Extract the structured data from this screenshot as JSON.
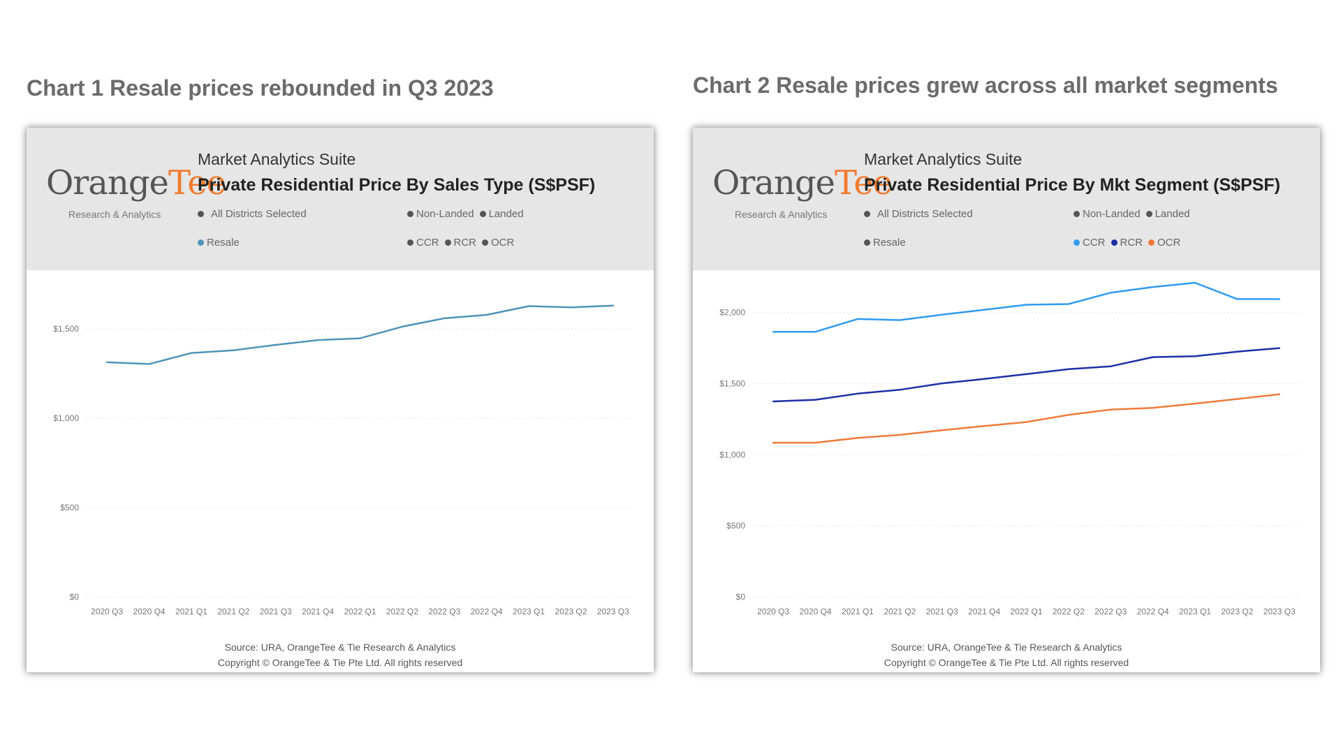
{
  "headings": {
    "chart1": "Chart 1 Resale prices rebounded in Q3 2023",
    "chart2": "Chart 2 Resale prices grew across all market segments"
  },
  "brand": {
    "logo_left": "Orange",
    "logo_right": "Tee",
    "logo_sub": "Research & Analytics",
    "suite": "Market Analytics Suite",
    "logo_color": "#f07a2d"
  },
  "panels": [
    {
      "title": "Private Residential Price By Sales Type (S$PSF)",
      "filters": {
        "districts": "All Districts Selected",
        "non_landed": "Non-Landed",
        "landed": "Landed",
        "resale": "Resale",
        "ccr": "CCR",
        "rcr": "RCR",
        "ocr": "OCR"
      },
      "filter_colors": {
        "resale": "#4f93b8",
        "ccr": "#555555",
        "rcr": "#555555",
        "ocr": "#555555"
      },
      "source": "Source: URA, OrangeTee & Tie Research & Analytics",
      "copyright": "Copyright © OrangeTee & Tie Pte Ltd. All rights reserved"
    },
    {
      "title": "Private Residential Price By Mkt Segment (S$PSF)",
      "filters": {
        "districts": "All Districts Selected",
        "non_landed": "Non-Landed",
        "landed": "Landed",
        "resale": "Resale",
        "ccr": "CCR",
        "rcr": "RCR",
        "ocr": "OCR"
      },
      "filter_colors": {
        "resale": "#555555",
        "ccr": "#2f9bf0",
        "rcr": "#1c2fa8",
        "ocr": "#f07a3a"
      },
      "source": "Source: URA, OrangeTee & Tie Research & Analytics",
      "copyright": "Copyright © OrangeTee & Tie Pte Ltd. All rights reserved"
    }
  ],
  "chart_data": [
    {
      "type": "line",
      "title": "Private Residential Price By Sales Type (S$PSF)",
      "categories": [
        "2020 Q3",
        "2020 Q4",
        "2021 Q1",
        "2021 Q2",
        "2021 Q3",
        "2021 Q4",
        "2022 Q1",
        "2022 Q2",
        "2022 Q3",
        "2022 Q4",
        "2023 Q1",
        "2023 Q2",
        "2023 Q3"
      ],
      "series": [
        {
          "name": "Resale",
          "color": "#4f93b8",
          "values": [
            1313,
            1303,
            1365,
            1380,
            1410,
            1437,
            1447,
            1512,
            1559,
            1578,
            1627,
            1620,
            1630
          ]
        }
      ],
      "yticks": [
        0,
        500,
        1000,
        1500
      ],
      "ytick_labels": [
        "$0",
        "$500",
        "$1,000",
        "$1,500"
      ],
      "ylim": [
        0,
        1750
      ],
      "grid": true,
      "legend": "top"
    },
    {
      "type": "line",
      "title": "Private Residential Price By Mkt Segment (S$PSF)",
      "categories": [
        "2020 Q3",
        "2020 Q4",
        "2021 Q1",
        "2021 Q2",
        "2021 Q3",
        "2021 Q4",
        "2022 Q1",
        "2022 Q2",
        "2022 Q3",
        "2022 Q4",
        "2023 Q1",
        "2023 Q2",
        "2023 Q3"
      ],
      "series": [
        {
          "name": "CCR",
          "color": "#2f9bf0",
          "values": [
            1865,
            1865,
            1955,
            1947,
            1985,
            2020,
            2055,
            2060,
            2140,
            2180,
            2210,
            2095,
            2095
          ]
        },
        {
          "name": "RCR",
          "color": "#1c2fa8",
          "values": [
            1375,
            1387,
            1430,
            1457,
            1502,
            1533,
            1567,
            1602,
            1622,
            1687,
            1693,
            1725,
            1750
          ]
        },
        {
          "name": "OCR",
          "color": "#f07a3a",
          "values": [
            1085,
            1085,
            1118,
            1140,
            1172,
            1202,
            1230,
            1280,
            1318,
            1330,
            1360,
            1392,
            1425
          ]
        }
      ],
      "yticks": [
        0,
        500,
        1000,
        1500,
        2000
      ],
      "ytick_labels": [
        "$0",
        "$500",
        "$1,000",
        "$1,500",
        "$2,000"
      ],
      "ylim": [
        0,
        2200
      ],
      "grid": true,
      "legend": "top"
    }
  ]
}
